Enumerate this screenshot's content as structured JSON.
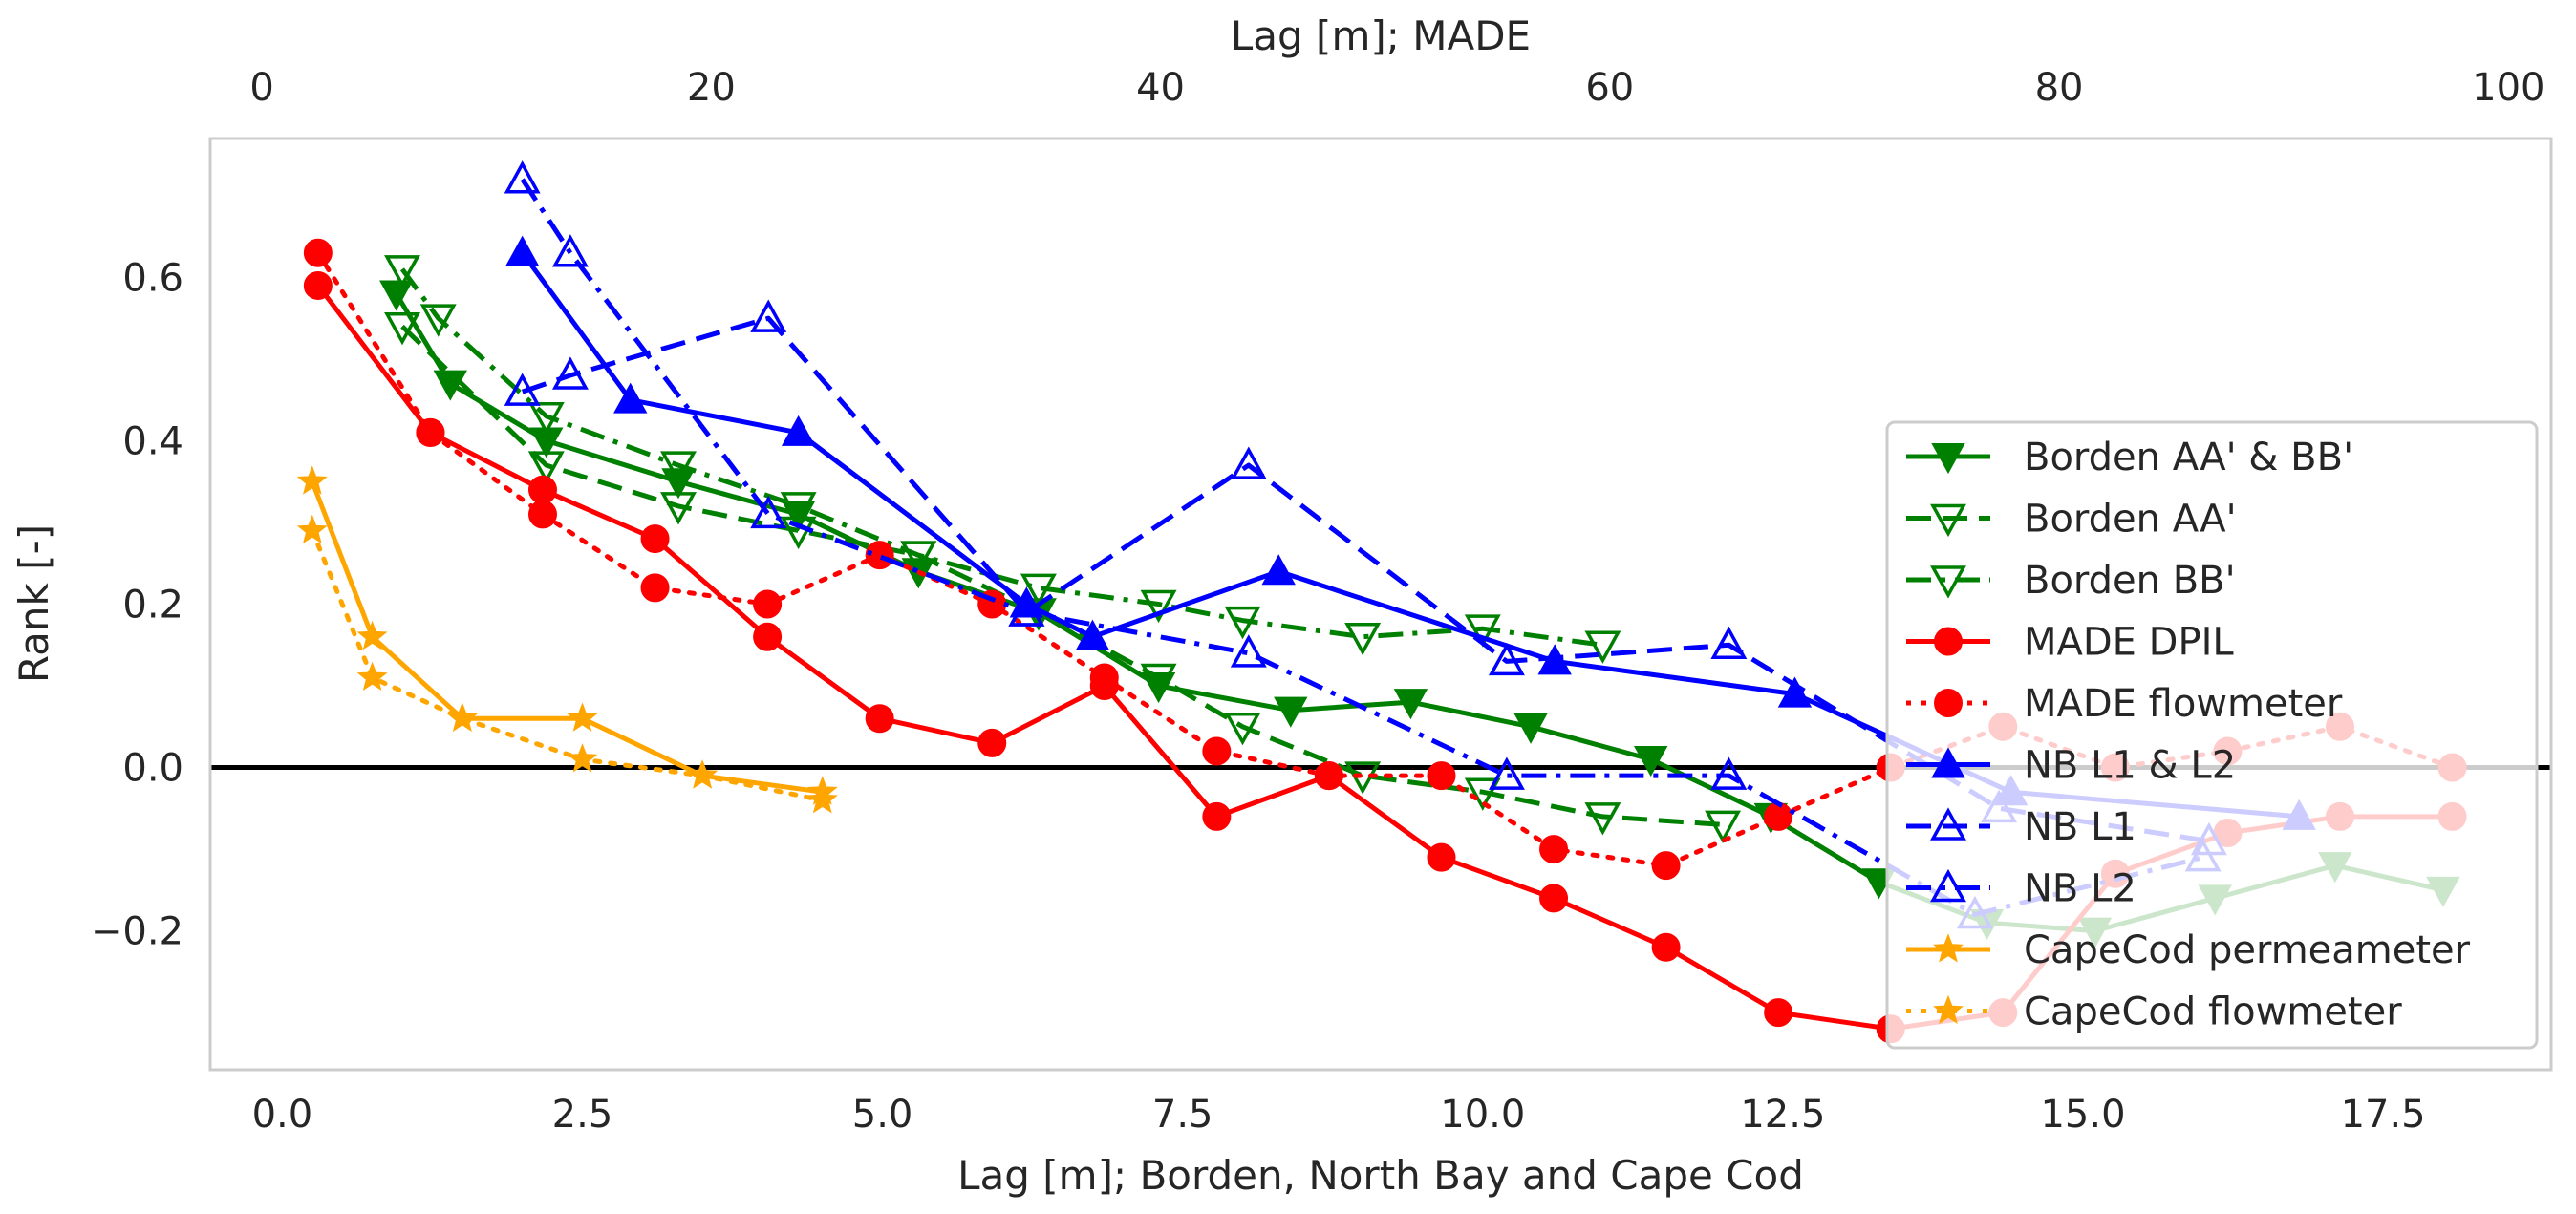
{
  "chart_data": {
    "type": "line",
    "title": "",
    "xlabel": "Lag [m]; Borden, North Bay and Cape Cod",
    "x2label": "Lag [m]; MADE",
    "ylabel": "Rank [-]",
    "xlim": [
      -0.6,
      18.9
    ],
    "x2lim": [
      -2.3,
      101.9
    ],
    "ylim": [
      -0.37,
      0.77
    ],
    "xticks": [
      0.0,
      2.5,
      5.0,
      7.5,
      10.0,
      12.5,
      15.0,
      17.5
    ],
    "xtick_labels": [
      "0.0",
      "2.5",
      "5.0",
      "7.5",
      "10.0",
      "12.5",
      "15.0",
      "17.5"
    ],
    "x2ticks": [
      0,
      20,
      40,
      60,
      80,
      100
    ],
    "x2tick_labels": [
      "0",
      "20",
      "40",
      "60",
      "80",
      "100"
    ],
    "yticks": [
      -0.2,
      0.0,
      0.2,
      0.4,
      0.6
    ],
    "ytick_labels": [
      "−0.2",
      "0.0",
      "0.2",
      "0.4",
      "0.6"
    ],
    "zero_line": 0.0,
    "grid": false,
    "legend_position": "right",
    "series": [
      {
        "name": "Borden AA' & BB'",
        "axis": "bottom",
        "color": "#008000",
        "linestyle": "solid",
        "marker": "tri-down",
        "filled": true,
        "x": [
          0.95,
          1.4,
          2.2,
          3.3,
          4.3,
          5.3,
          6.3,
          7.3,
          8.4,
          9.4,
          10.4,
          11.4,
          12.4,
          13.3,
          14.2,
          15.1,
          16.1,
          17.1,
          18.0
        ],
        "y": [
          0.58,
          0.47,
          0.4,
          0.35,
          0.31,
          0.24,
          0.19,
          0.1,
          0.07,
          0.08,
          0.05,
          0.01,
          -0.06,
          -0.14,
          -0.19,
          -0.2,
          -0.16,
          -0.12,
          -0.15
        ]
      },
      {
        "name": "Borden AA'",
        "axis": "bottom",
        "color": "#008000",
        "linestyle": "dashed",
        "marker": "tri-down",
        "filled": false,
        "x": [
          1.0,
          2.2,
          3.3,
          4.3,
          5.3,
          6.3,
          7.3,
          8.0,
          9.0,
          10.0,
          11.0,
          12.0
        ],
        "y": [
          0.54,
          0.37,
          0.32,
          0.29,
          0.26,
          0.19,
          0.11,
          0.05,
          -0.01,
          -0.03,
          -0.06,
          -0.07
        ]
      },
      {
        "name": "Borden BB'",
        "axis": "bottom",
        "color": "#008000",
        "linestyle": "dashdot",
        "marker": "tri-down",
        "filled": false,
        "x": [
          1.0,
          1.3,
          2.2,
          3.3,
          4.3,
          5.3,
          6.3,
          7.3,
          8.0,
          9.0,
          10.0,
          11.0
        ],
        "y": [
          0.61,
          0.55,
          0.43,
          0.37,
          0.32,
          0.26,
          0.22,
          0.2,
          0.18,
          0.16,
          0.17,
          0.15
        ]
      },
      {
        "name": "MADE DPIL",
        "axis": "top",
        "color": "#ff0000",
        "linestyle": "solid",
        "marker": "circle",
        "filled": true,
        "x": [
          2.5,
          7.5,
          12.5,
          17.5,
          22.5,
          27.5,
          32.5,
          37.5,
          42.5,
          47.5,
          52.5,
          57.5,
          62.5,
          67.5,
          72.5,
          77.5,
          82.5,
          87.5,
          92.5,
          97.5
        ],
        "y": [
          0.59,
          0.41,
          0.34,
          0.28,
          0.16,
          0.06,
          0.03,
          0.1,
          -0.06,
          -0.01,
          -0.11,
          -0.16,
          -0.22,
          -0.3,
          -0.32,
          -0.3,
          -0.13,
          -0.08,
          -0.06,
          -0.06
        ]
      },
      {
        "name": "MADE flowmeter",
        "axis": "top",
        "color": "#ff0000",
        "linestyle": "dotted",
        "marker": "circle",
        "filled": true,
        "x": [
          2.5,
          7.5,
          12.5,
          17.5,
          22.5,
          27.5,
          32.5,
          37.5,
          42.5,
          47.5,
          52.5,
          57.5,
          62.5,
          67.5,
          72.5,
          77.5,
          82.5,
          87.5,
          92.5,
          97.5
        ],
        "y": [
          0.63,
          0.41,
          0.31,
          0.22,
          0.2,
          0.26,
          0.2,
          0.11,
          0.02,
          -0.01,
          -0.01,
          -0.1,
          -0.12,
          -0.06,
          0.0,
          0.05,
          0.0,
          0.02,
          0.05,
          0.0
        ]
      },
      {
        "name": "NB L1 & L2",
        "axis": "bottom",
        "color": "#0000ff",
        "linestyle": "solid",
        "marker": "tri-up",
        "filled": true,
        "x": [
          2.0,
          2.9,
          4.3,
          6.2,
          6.75,
          8.3,
          10.6,
          12.6,
          14.4,
          16.8
        ],
        "y": [
          0.63,
          0.45,
          0.41,
          0.2,
          0.16,
          0.24,
          0.13,
          0.09,
          -0.03,
          -0.06
        ]
      },
      {
        "name": "NB L1",
        "axis": "bottom",
        "color": "#0000ff",
        "linestyle": "dashed",
        "marker": "tri-up",
        "filled": false,
        "x": [
          2.0,
          2.4,
          4.05,
          6.2,
          8.05,
          10.2,
          12.05,
          14.3,
          16.05
        ],
        "y": [
          0.46,
          0.48,
          0.55,
          0.19,
          0.37,
          0.13,
          0.15,
          -0.05,
          -0.09
        ]
      },
      {
        "name": "NB L2",
        "axis": "bottom",
        "color": "#0000ff",
        "linestyle": "dashdot",
        "marker": "tri-up",
        "filled": false,
        "x": [
          2.0,
          2.4,
          4.05,
          6.2,
          8.05,
          10.2,
          12.05,
          14.1,
          16.0
        ],
        "y": [
          0.72,
          0.63,
          0.31,
          0.19,
          0.14,
          -0.01,
          -0.01,
          -0.18,
          -0.11
        ]
      },
      {
        "name": "CapeCod permeameter",
        "axis": "bottom",
        "color": "#ffa500",
        "linestyle": "solid",
        "marker": "star",
        "filled": true,
        "x": [
          0.25,
          0.75,
          1.5,
          2.5,
          3.5,
          4.5
        ],
        "y": [
          0.35,
          0.16,
          0.06,
          0.06,
          -0.01,
          -0.03
        ]
      },
      {
        "name": "CapeCod flowmeter",
        "axis": "bottom",
        "color": "#ffa500",
        "linestyle": "dotted",
        "marker": "star",
        "filled": true,
        "x": [
          0.25,
          0.75,
          1.5,
          2.5,
          3.5,
          4.5
        ],
        "y": [
          0.29,
          0.11,
          0.06,
          0.01,
          -0.01,
          -0.04
        ]
      }
    ]
  }
}
